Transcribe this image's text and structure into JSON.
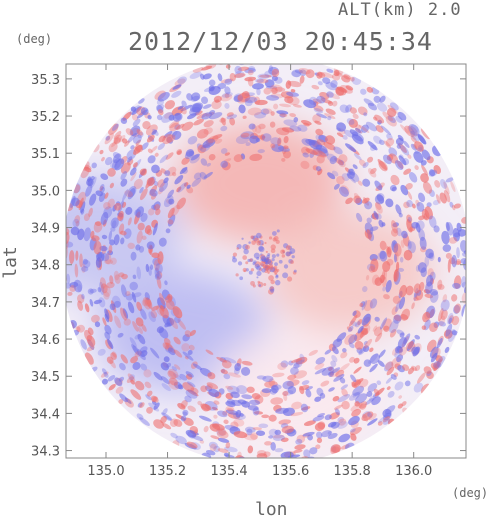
{
  "header": {
    "altitude": "ALT(km) 2.0",
    "timestamp": "2012/12/03 20:45:34"
  },
  "chart_data": {
    "type": "heatmap",
    "title": "2012/12/03 20:45:34",
    "subtitle": "ALT(km) 2.0",
    "xlabel": "lon",
    "ylabel": "lat",
    "xunit": "(deg)",
    "yunit": "(deg)",
    "xlim": [
      134.87,
      136.17
    ],
    "ylim": [
      34.28,
      35.34
    ],
    "xticks": [
      "135.0",
      "135.2",
      "135.4",
      "135.6",
      "135.8",
      "136.0"
    ],
    "xtick_values": [
      135.0,
      135.2,
      135.4,
      135.6,
      135.8,
      136.0
    ],
    "yticks": [
      "34.3",
      "34.4",
      "34.5",
      "34.6",
      "34.7",
      "34.8",
      "34.9",
      "35.0",
      "35.1",
      "35.2",
      "35.3"
    ],
    "ytick_values": [
      34.3,
      34.4,
      34.5,
      34.6,
      34.7,
      34.8,
      34.9,
      35.0,
      35.1,
      35.2,
      35.3
    ],
    "radar_center": [
      135.52,
      34.81
    ],
    "radar_radius_deg": 0.55,
    "colormap": [
      "#6f6fe8",
      "#ffffff",
      "#ee6f6f"
    ],
    "field_regions": [
      {
        "label": "positive",
        "color": "#f4b3b0",
        "lon": 135.5,
        "lat": 35.02
      },
      {
        "label": "negative",
        "color": "#b9b9f2",
        "lon": 135.25,
        "lat": 34.62
      },
      {
        "label": "negative",
        "color": "#c4c4f2",
        "lon": 134.97,
        "lat": 34.88
      },
      {
        "label": "positive",
        "color": "#f6c6c4",
        "lon": 135.79,
        "lat": 34.78
      },
      {
        "label": "neutral",
        "color": "#fbe9ee",
        "lon": 135.62,
        "lat": 34.46
      }
    ],
    "grid": false
  }
}
